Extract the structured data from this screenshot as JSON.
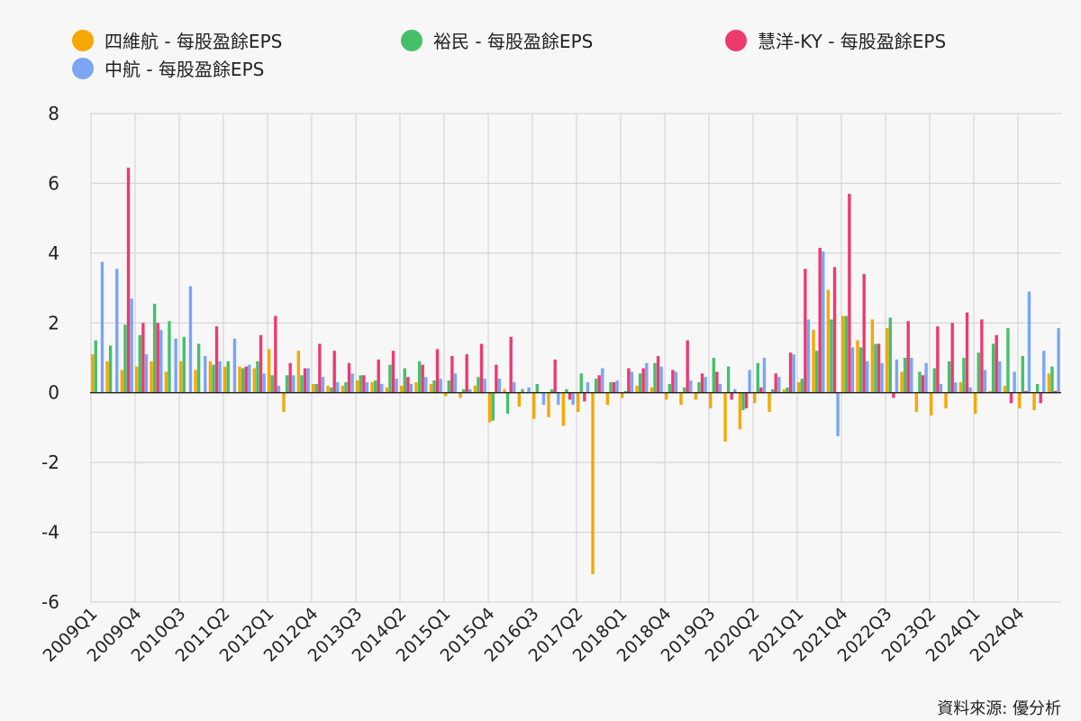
{
  "colors": {
    "sihwei": "#f5a800",
    "yumin": "#45c06a",
    "huiyang": "#ec3a71",
    "zhonghang": "#7aa6f2"
  },
  "source": "資料來源: 優分析",
  "chart_data": {
    "type": "bar",
    "title": "",
    "xlabel": "",
    "ylabel": "",
    "ylim": [
      -6,
      8
    ],
    "yticks": [
      8,
      6,
      4,
      2,
      0,
      -2,
      -4,
      -6
    ],
    "grid": true,
    "legend_position": "top",
    "categories": [
      "2009Q1",
      "2009Q2",
      "2009Q3",
      "2009Q4",
      "2010Q1",
      "2010Q2",
      "2010Q3",
      "2010Q4",
      "2011Q1",
      "2011Q2",
      "2011Q3",
      "2011Q4",
      "2012Q1",
      "2012Q2",
      "2012Q3",
      "2012Q4",
      "2013Q1",
      "2013Q2",
      "2013Q3",
      "2013Q4",
      "2014Q1",
      "2014Q2",
      "2014Q3",
      "2014Q4",
      "2015Q1",
      "2015Q2",
      "2015Q3",
      "2015Q4",
      "2016Q1",
      "2016Q2",
      "2016Q3",
      "2016Q4",
      "2017Q1",
      "2017Q2",
      "2017Q3",
      "2017Q4",
      "2018Q1",
      "2018Q2",
      "2018Q3",
      "2018Q4",
      "2019Q1",
      "2019Q2",
      "2019Q3",
      "2019Q4",
      "2020Q1",
      "2020Q2",
      "2020Q3",
      "2020Q4",
      "2021Q1",
      "2021Q2",
      "2021Q3",
      "2021Q4",
      "2022Q1",
      "2022Q2",
      "2022Q3",
      "2022Q4",
      "2023Q1",
      "2023Q2",
      "2023Q3",
      "2023Q4",
      "2024Q1",
      "2024Q2",
      "2024Q3",
      "2024Q4",
      "2025Q1",
      "2025Q2"
    ],
    "tick_labels": [
      "2009Q1",
      "2009Q4",
      "2010Q3",
      "2011Q2",
      "2012Q1",
      "2012Q4",
      "2013Q3",
      "2014Q2",
      "2015Q1",
      "2015Q4",
      "2016Q3",
      "2017Q2",
      "2018Q1",
      "2018Q4",
      "2019Q3",
      "2020Q2",
      "2021Q1",
      "2021Q4",
      "2022Q3",
      "2023Q2",
      "2024Q1",
      "2024Q4"
    ],
    "series": [
      {
        "name": "四維航 - 每股盈餘EPS",
        "color_key": "sihwei",
        "values": [
          1.1,
          0.9,
          0.65,
          0.75,
          0.9,
          0.6,
          0.9,
          0.65,
          0.9,
          0.75,
          0.75,
          0.7,
          1.25,
          -0.55,
          1.2,
          0.25,
          0.2,
          0.2,
          0.35,
          0.3,
          0.15,
          0.2,
          0.3,
          0.25,
          -0.1,
          -0.15,
          0.2,
          -0.85,
          0.1,
          -0.4,
          -0.75,
          -0.7,
          -0.95,
          -0.55,
          -5.2,
          -0.35,
          -0.15,
          0.2,
          0.15,
          -0.2,
          -0.35,
          -0.2,
          -0.45,
          -1.4,
          -1.05,
          -0.3,
          -0.55,
          0.1,
          0.3,
          1.8,
          2.95,
          2.2,
          1.5,
          2.1,
          1.85,
          0.6,
          -0.55,
          -0.65,
          -0.45,
          0.3,
          -0.6,
          0.05,
          0.2,
          -0.45,
          -0.5,
          0.55
        ]
      },
      {
        "name": "裕民 - 每股盈餘EPS",
        "color_key": "yumin",
        "values": [
          1.5,
          1.35,
          1.95,
          1.65,
          2.55,
          2.05,
          1.6,
          1.4,
          0.8,
          0.9,
          0.7,
          0.9,
          0.5,
          0.5,
          0.5,
          0.25,
          0.15,
          0.3,
          0.5,
          0.35,
          0.8,
          0.7,
          0.9,
          0.35,
          0.35,
          0.1,
          0.45,
          -0.8,
          -0.6,
          0.1,
          0.25,
          0.1,
          0.1,
          0.55,
          0.4,
          0.3,
          0.05,
          0.55,
          0.85,
          0.25,
          0.15,
          0.3,
          1.0,
          0.75,
          -0.5,
          0.85,
          0.1,
          0.15,
          0.4,
          1.2,
          2.1,
          2.2,
          1.3,
          1.4,
          2.15,
          1.0,
          0.6,
          0.7,
          0.9,
          1.0,
          1.15,
          1.4,
          1.85,
          1.05,
          0.25,
          0.75
        ]
      },
      {
        "name": "慧洋-KY - 每股盈餘EPS",
        "color_key": "huiyang",
        "values": [
          0,
          0,
          6.45,
          2.0,
          2.0,
          0,
          0,
          0,
          1.9,
          0,
          0.75,
          1.65,
          2.2,
          0.85,
          0.7,
          1.4,
          1.2,
          0.85,
          0.5,
          0.95,
          1.2,
          0.45,
          0.8,
          1.25,
          1.05,
          1.1,
          1.4,
          0.8,
          1.6,
          0,
          0,
          0.95,
          -0.2,
          -0.25,
          0.5,
          0.3,
          0.7,
          0.7,
          1.05,
          0.65,
          1.5,
          0.55,
          0.6,
          -0.2,
          -0.45,
          0.15,
          0.55,
          1.15,
          3.55,
          4.15,
          3.6,
          5.7,
          3.4,
          1.4,
          -0.15,
          2.05,
          0.5,
          1.9,
          2.0,
          2.3,
          2.1,
          1.65,
          -0.3,
          0.05,
          -0.3,
          0.05
        ]
      },
      {
        "name": "中航 - 每股盈餘EPS",
        "color_key": "zhonghang",
        "values": [
          3.75,
          3.55,
          2.7,
          1.1,
          1.8,
          1.55,
          3.05,
          1.05,
          0.9,
          1.55,
          0.8,
          0.55,
          0.2,
          0.5,
          0.7,
          0.45,
          0.3,
          0.55,
          0.3,
          0.25,
          0.4,
          0.25,
          0.45,
          0.4,
          0.55,
          0.1,
          0.4,
          0.4,
          0.3,
          0.15,
          -0.35,
          -0.35,
          -0.35,
          0.3,
          0.7,
          0.35,
          0.6,
          0.85,
          0.75,
          0.6,
          0.35,
          0.45,
          0.25,
          0.1,
          0.65,
          1.0,
          0.45,
          1.1,
          2.1,
          4.05,
          -1.25,
          1.3,
          0.9,
          0.85,
          0.95,
          1.0,
          0.85,
          0.25,
          0.3,
          0.15,
          0.65,
          0.9,
          0.6,
          2.9,
          1.2,
          1.85
        ]
      }
    ]
  }
}
